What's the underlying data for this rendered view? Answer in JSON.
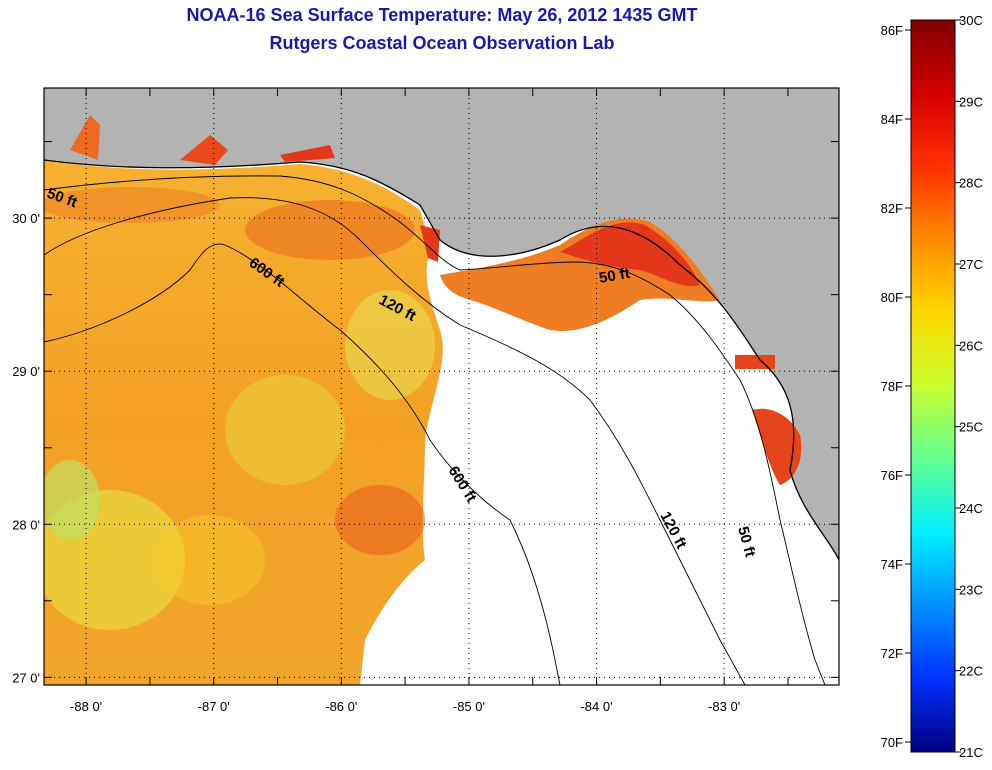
{
  "header": {
    "title": "NOAA-16 Sea Surface Temperature:  May 26, 2012 1435 GMT",
    "subtitle": "Rutgers Coastal Ocean Observation Lab"
  },
  "map": {
    "lon_range": [
      -88.33,
      -82.1
    ],
    "lat_range": [
      26.95,
      30.85
    ],
    "lon_ticks": [
      {
        "value": -88,
        "label": "-88 0'"
      },
      {
        "value": -87,
        "label": "-87 0'"
      },
      {
        "value": -86,
        "label": "-86 0'"
      },
      {
        "value": -85,
        "label": "-85 0'"
      },
      {
        "value": -84,
        "label": "-84 0'"
      },
      {
        "value": -83,
        "label": "-83 0'"
      }
    ],
    "lat_ticks": [
      {
        "value": 30,
        "label": "30 0'"
      },
      {
        "value": 29,
        "label": "29 0'"
      },
      {
        "value": 28,
        "label": "28 0'"
      },
      {
        "value": 27,
        "label": "27 0'"
      }
    ],
    "contour_labels": {
      "c50a": "50 ft",
      "c50b": "50 ft",
      "c50c": "50 ft",
      "c120a": "120 ft",
      "c120b": "120 ft",
      "c600a": "600 ft",
      "c600b": "600 ft"
    },
    "colors": {
      "land": "#b3b3b3",
      "no_data": "#ffffff",
      "water_warm": "#f59a24",
      "water_mid": "#f6cd2a",
      "water_hot": "#e8461c"
    }
  },
  "colorbar": {
    "fahrenheit_labels": [
      "86F",
      "84F",
      "82F",
      "80F",
      "78F",
      "76F",
      "74F",
      "72F",
      "70F"
    ],
    "celsius_labels": [
      "30C",
      "29C",
      "28C",
      "27C",
      "26C",
      "25C",
      "24C",
      "23C",
      "22C",
      "21C"
    ],
    "gradient": [
      "#7f0000",
      "#d40000",
      "#ff3000",
      "#ff8a00",
      "#ffd800",
      "#c8ff30",
      "#60ff90",
      "#00f0ff",
      "#0090ff",
      "#0030ff",
      "#00007f"
    ]
  }
}
